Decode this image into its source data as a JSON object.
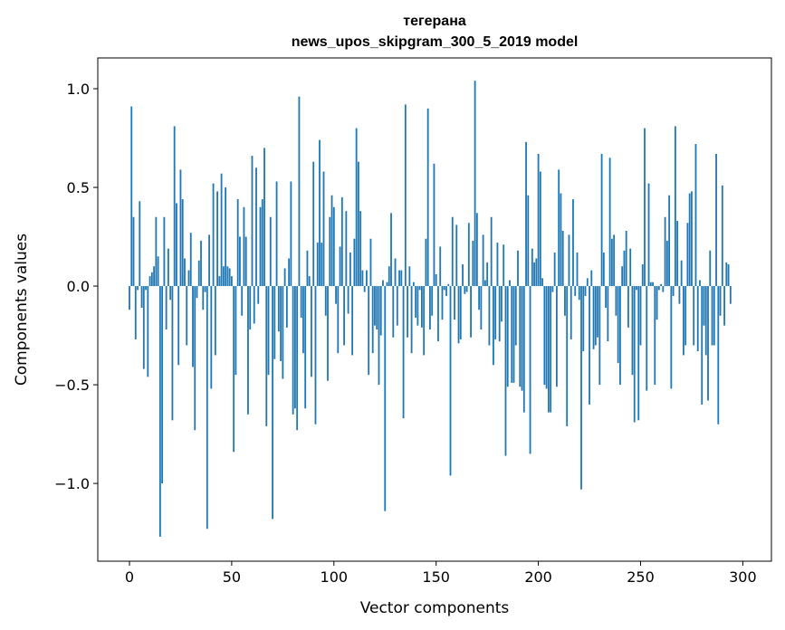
{
  "chart_data": {
    "type": "bar",
    "title": [
      "тегерана",
      "news_upos_skipgram_300_5_2019 model"
    ],
    "xlabel": "Vector components",
    "ylabel": "Components values",
    "xlim": [
      -15.5,
      314
    ],
    "ylim": [
      -1.394,
      1.156
    ],
    "xticks": [
      0,
      50,
      100,
      150,
      200,
      250,
      300
    ],
    "xtick_labels": [
      "0",
      "50",
      "100",
      "150",
      "200",
      "250",
      "300"
    ],
    "yticks": [
      -1.0,
      -0.5,
      0.0,
      0.5,
      1.0
    ],
    "ytick_labels": [
      "−1.0",
      "−0.5",
      "0.0",
      "0.5",
      "1.0"
    ],
    "grid": false,
    "bar_color": "#1f77b4",
    "values": [
      -0.12,
      0.91,
      0.35,
      -0.27,
      -0.02,
      0.43,
      -0.11,
      -0.42,
      -0.02,
      -0.46,
      0.05,
      0.07,
      0.1,
      0.35,
      0.15,
      -1.27,
      -1.0,
      0.35,
      -0.22,
      0.19,
      -0.07,
      -0.68,
      0.81,
      0.42,
      -0.4,
      0.59,
      0.44,
      0.14,
      -0.3,
      0.08,
      0.27,
      -0.41,
      -0.73,
      -0.06,
      0.13,
      0.23,
      -0.12,
      -0.03,
      -1.23,
      0.26,
      -0.52,
      0.52,
      -0.35,
      0.48,
      0.05,
      0.57,
      0.1,
      0.5,
      0.1,
      0.09,
      0.05,
      -0.84,
      -0.45,
      0.44,
      0.25,
      -0.15,
      0.4,
      0.25,
      -0.65,
      -0.22,
      0.66,
      -0.19,
      0.6,
      -0.09,
      0.4,
      0.44,
      0.7,
      -0.71,
      -0.45,
      0.35,
      -1.18,
      -0.37,
      0.53,
      -0.23,
      -0.38,
      -0.47,
      0.09,
      -0.21,
      0.14,
      0.53,
      -0.65,
      -0.62,
      -0.73,
      0.96,
      -0.16,
      -0.34,
      -0.62,
      0.18,
      0.05,
      -0.46,
      0.63,
      -0.7,
      0.22,
      0.74,
      0.22,
      0.58,
      -0.15,
      -0.48,
      0.35,
      0.46,
      0.4,
      -0.09,
      -0.34,
      0.2,
      0.45,
      -0.3,
      0.38,
      -0.14,
      0.17,
      -0.35,
      0.24,
      0.8,
      0.63,
      0.38,
      0.08,
      -0.03,
      0.08,
      -0.45,
      0.24,
      -0.34,
      -0.2,
      -0.22,
      -0.5,
      -0.25,
      0.03,
      -1.14,
      0.02,
      0.1,
      0.37,
      -0.26,
      0.14,
      -0.2,
      0.08,
      0.08,
      -0.67,
      0.92,
      -0.26,
      0.1,
      -0.34,
      0.02,
      -0.16,
      -0.2,
      -0.02,
      -0.21,
      -0.35,
      0.24,
      0.9,
      -0.22,
      -0.15,
      0.62,
      0.06,
      -0.28,
      0.2,
      -0.17,
      -0.02,
      -0.05,
      0.01,
      -0.96,
      0.35,
      -0.17,
      0.31,
      -0.29,
      -0.27,
      0.11,
      -0.04,
      -0.03,
      0.32,
      -0.26,
      0.23,
      1.04,
      0.37,
      -0.12,
      -0.22,
      0.26,
      0.03,
      0.12,
      -0.3,
      0.35,
      -0.4,
      -0.27,
      0.22,
      -0.28,
      -0.18,
      0.21,
      -0.86,
      -0.51,
      0.03,
      -0.49,
      -0.49,
      -0.3,
      0.18,
      -0.51,
      -0.53,
      -0.64,
      0.73,
      0.46,
      -0.85,
      0.19,
      0.12,
      0.14,
      0.67,
      0.58,
      0.04,
      -0.5,
      -0.52,
      -0.64,
      -0.64,
      -0.03,
      0.17,
      -0.51,
      0.59,
      0.47,
      0.28,
      -0.15,
      -0.71,
      0.26,
      -0.27,
      0.44,
      -0.05,
      0.17,
      -0.07,
      -1.03,
      -0.33,
      -0.05,
      0.04,
      -0.6,
      0.08,
      -0.32,
      -0.3,
      -0.26,
      -0.5,
      0.67,
      0.17,
      -0.11,
      -0.28,
      0.65,
      0.24,
      0.26,
      -0.15,
      -0.39,
      -0.5,
      0.1,
      0.18,
      0.28,
      -0.21,
      0.19,
      -0.45,
      -0.69,
      -0.02,
      -0.68,
      -0.3,
      0.11,
      0.8,
      -0.53,
      0.52,
      0.02,
      0.02,
      -0.5,
      -0.17,
      -0.02,
      0.01,
      -0.03,
      0.35,
      0.23,
      0.46,
      -0.52,
      -0.05,
      0.81,
      0.33,
      -0.09,
      0.13,
      -0.35,
      -0.3,
      0.32,
      0.47,
      0.48,
      -0.3,
      0.72,
      -0.33,
      0.03,
      -0.6,
      -0.2,
      -0.35,
      -0.58,
      0.18,
      -0.3,
      -0.3,
      0.67,
      -0.7,
      -0.15,
      0.51,
      -0.2,
      0.12,
      0.11,
      -0.09
    ]
  }
}
